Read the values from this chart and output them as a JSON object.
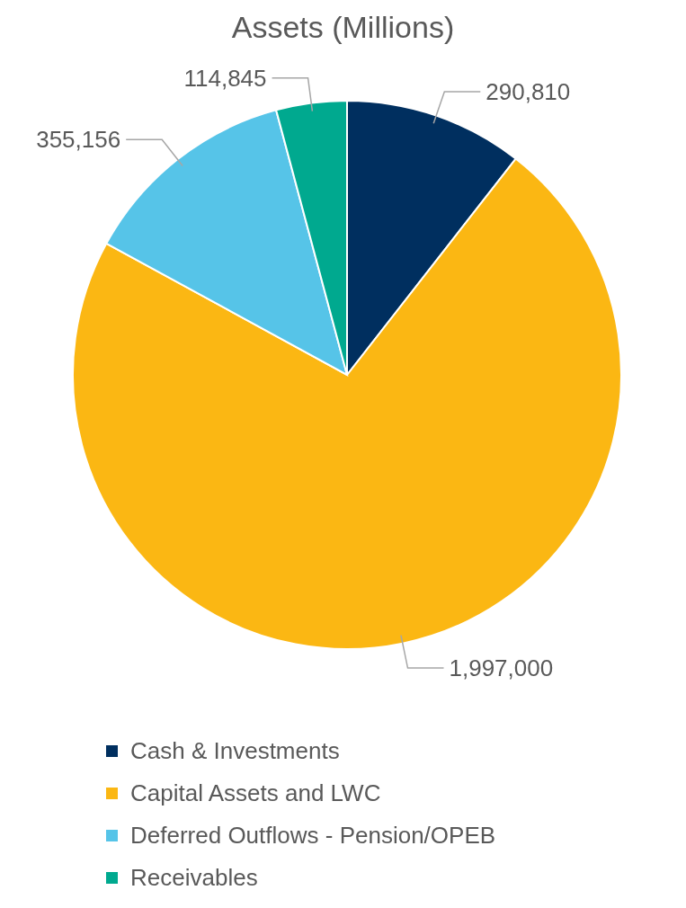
{
  "chart_data": {
    "type": "pie",
    "title": "Assets (Millions)",
    "categories": [
      "Cash & Investments",
      "Capital Assets and LWC",
      "Deferred Outflows - Pension/OPEB",
      "Receivables"
    ],
    "values": [
      290810,
      1997000,
      355156,
      114845
    ],
    "value_labels": [
      "290,810",
      "1,997,000",
      "355,156",
      "114,845"
    ],
    "colors": [
      "#002f5f",
      "#fbb713",
      "#56c4e8",
      "#00a98f"
    ],
    "legend": "bottom"
  }
}
